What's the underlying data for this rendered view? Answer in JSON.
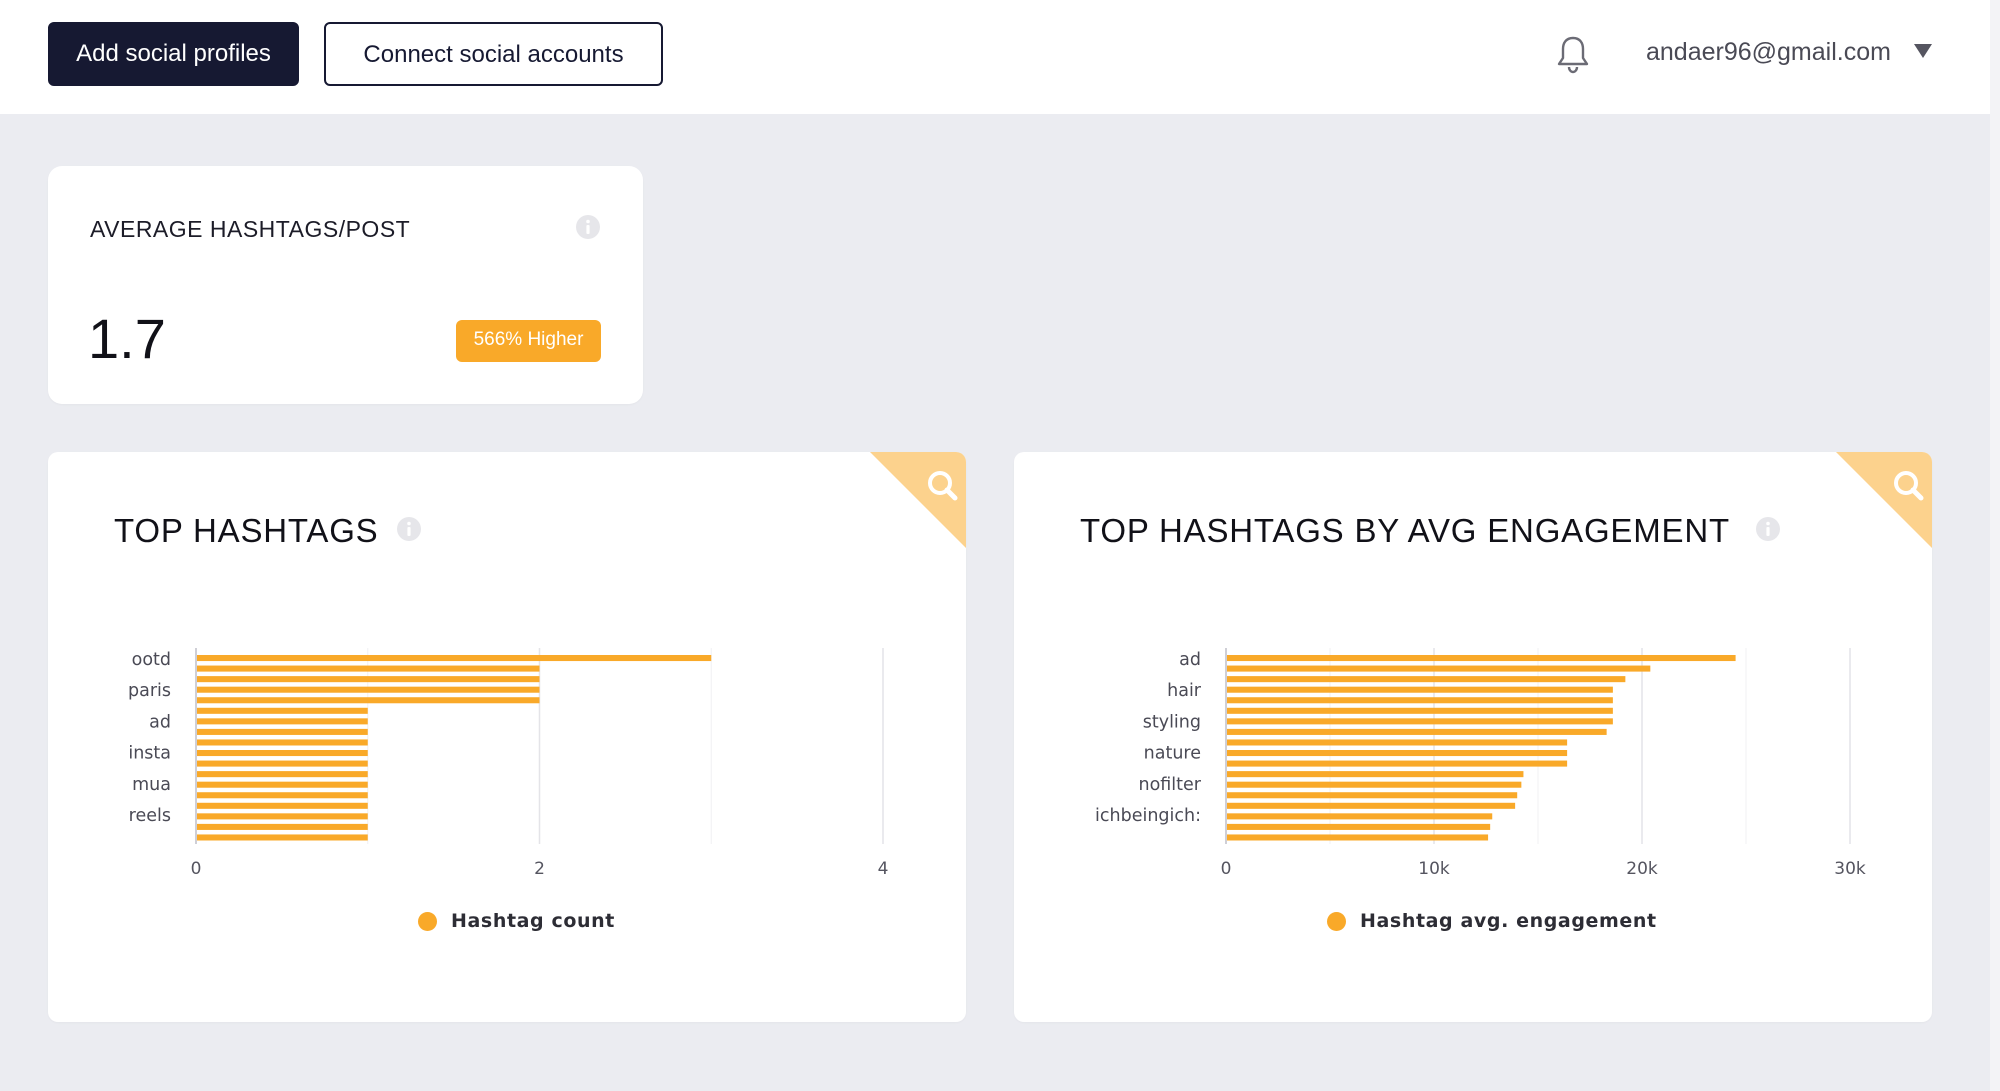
{
  "header": {
    "add_profiles_label": "Add social profiles",
    "connect_accounts_label": "Connect social accounts",
    "user_email": "andaer96@gmail.com",
    "bell_icon": "bell-icon",
    "caret_icon": "caret-down-icon"
  },
  "stat_card": {
    "title": "AVERAGE HASHTAGS/POST",
    "value": "1.7",
    "badge": "566% Higher",
    "info_icon": "info-icon"
  },
  "colors": {
    "accent": "#f9a929",
    "corner": "#fcd28d",
    "navy": "#161932",
    "background": "#ebecf1",
    "grid": "#e4e4e8"
  },
  "chart_data": [
    {
      "type": "bar",
      "title": "TOP HASHTAGS",
      "orientation": "horizontal",
      "category_labels_shown": [
        "ootd",
        "paris",
        "ad",
        "insta",
        "mua",
        "reels"
      ],
      "series": [
        {
          "name": "Hashtag count",
          "values": [
            3,
            2,
            2,
            2,
            2,
            1,
            1,
            1,
            1,
            1,
            1,
            1,
            1,
            1,
            1,
            1,
            1,
            1
          ]
        }
      ],
      "xticks": [
        "0",
        "2",
        "4"
      ],
      "xlim": [
        0,
        4
      ],
      "grid": true,
      "legend_position": "bottom"
    },
    {
      "type": "bar",
      "title": "TOP HASHTAGS BY AVG ENGAGEMENT",
      "orientation": "horizontal",
      "category_labels_shown": [
        "ad",
        "hair",
        "styling",
        "nature",
        "nofilter",
        "ichbeingich:"
      ],
      "series": [
        {
          "name": "Hashtag avg. engagement",
          "values": [
            24500,
            20400,
            19200,
            18600,
            18600,
            18600,
            18600,
            18300,
            16400,
            16400,
            16400,
            14300,
            14200,
            14000,
            13900,
            12800,
            12700,
            12600
          ]
        }
      ],
      "xticks": [
        "0",
        "10k",
        "20k",
        "30k"
      ],
      "xlim": [
        0,
        30000
      ],
      "grid": true,
      "legend_position": "bottom"
    }
  ]
}
